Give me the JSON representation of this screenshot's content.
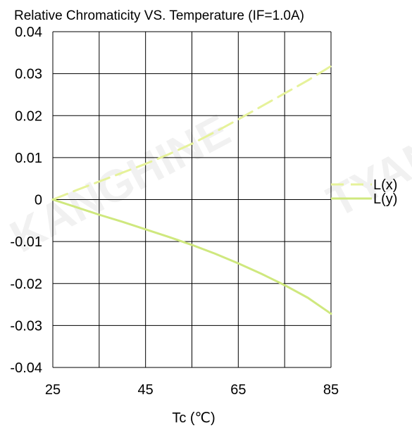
{
  "chart_data": {
    "type": "line",
    "title": "Relative Chromaticity VS. Temperature (IF=1.0A)",
    "xlabel": "Tc (℃)",
    "ylabel": "",
    "xlim": [
      25,
      85
    ],
    "ylim": [
      -0.04,
      0.04
    ],
    "x_ticks": [
      "25",
      "45",
      "65",
      "85"
    ],
    "y_ticks": [
      "0.04",
      "0.03",
      "0.02",
      "0.01",
      "0",
      "-0.01",
      "-0.02",
      "-0.03",
      "-0.04"
    ],
    "grid": true,
    "legend_position": "right",
    "series": [
      {
        "name": "L(x)",
        "style": "dashed",
        "color": "#e6f29a",
        "x": [
          25,
          30,
          35,
          40,
          45,
          50,
          55,
          60,
          65,
          70,
          75,
          80,
          85
        ],
        "y": [
          0,
          0.0022,
          0.0043,
          0.0064,
          0.0085,
          0.0108,
          0.0133,
          0.0161,
          0.0191,
          0.0222,
          0.0253,
          0.0284,
          0.0318
        ]
      },
      {
        "name": "L(y)",
        "style": "solid",
        "color": "#cfe87e",
        "x": [
          25,
          30,
          35,
          40,
          45,
          50,
          55,
          60,
          65,
          70,
          75,
          80,
          85
        ],
        "y": [
          0,
          -0.0018,
          -0.0036,
          -0.0053,
          -0.0071,
          -0.0089,
          -0.0108,
          -0.0129,
          -0.0152,
          -0.0177,
          -0.0204,
          -0.0234,
          -0.0272
        ]
      }
    ]
  },
  "watermark": {
    "text_left": "KANGHINE",
    "text_right": "TYAN"
  }
}
